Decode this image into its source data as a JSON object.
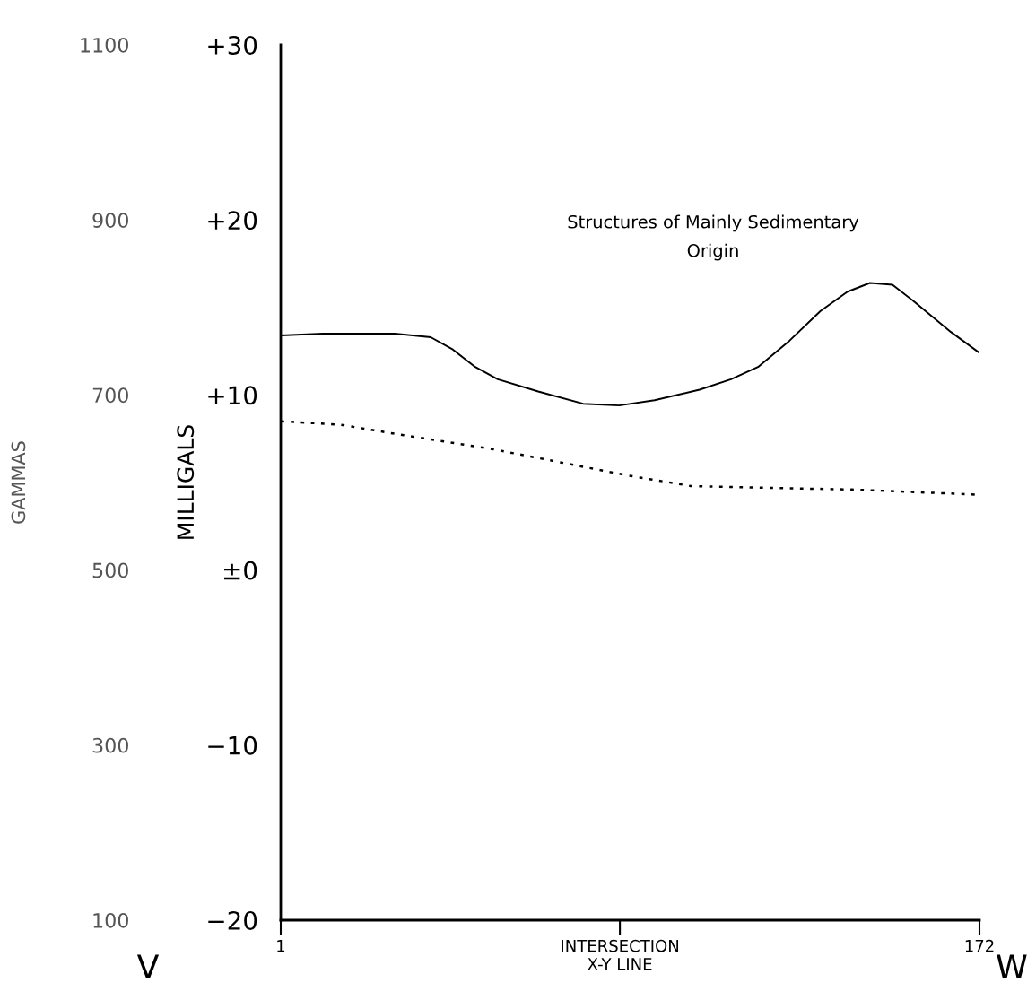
{
  "chart_data": {
    "type": "line",
    "ylabel": "MILLIGALS",
    "y2label": "GAMMAS",
    "xlim": [
      1,
      172
    ],
    "xticks": [
      1,
      {
        "value": 84,
        "label": "INTERSECTION\nX-Y LINE"
      },
      172
    ],
    "ylim": [
      -20,
      30
    ],
    "yticks": [
      {
        "value": 30,
        "label": "+30"
      },
      {
        "value": 20,
        "label": "+20"
      },
      {
        "value": 10,
        "label": "+10"
      },
      {
        "value": 0,
        "label": "±0"
      },
      {
        "value": -10,
        "label": "−10"
      },
      {
        "value": -20,
        "label": "−20"
      }
    ],
    "y2lim": [
      100,
      1100
    ],
    "y2ticks": [
      100,
      300,
      500,
      700,
      900,
      1100
    ],
    "grid": false,
    "legend": false,
    "marker": "none",
    "annotations": [
      "Structures of Mainly Sedimentary\nOrigin",
      "V",
      "W"
    ],
    "series": [
      {
        "color": "#000000",
        "line_style": "solid",
        "x": [
          1,
          11.3,
          28.9,
          37.7,
          43.1,
          48.6,
          54.1,
          64.0,
          75.0,
          83.8,
          92.5,
          103.5,
          111.2,
          117.8,
          125.5,
          133.1,
          139.7,
          145.2,
          150.7,
          156.2,
          165.0,
          172
        ],
        "values": [
          13.4,
          13.5,
          13.5,
          13.3,
          12.6,
          11.6,
          10.9,
          10.2,
          9.5,
          9.4,
          9.7,
          10.3,
          10.9,
          11.6,
          13.1,
          14.8,
          15.9,
          16.4,
          16.3,
          15.3,
          13.6,
          12.4
        ]
      },
      {
        "color": "#000000",
        "line_style": "dotted",
        "x": [
          1,
          15.7,
          31.1,
          53.0,
          68.4,
          86.0,
          101.3,
          118.9,
          140.8,
          172
        ],
        "values": [
          8.5,
          8.3,
          7.7,
          6.9,
          6.2,
          5.4,
          4.8,
          4.7,
          4.6,
          4.3
        ]
      }
    ]
  }
}
